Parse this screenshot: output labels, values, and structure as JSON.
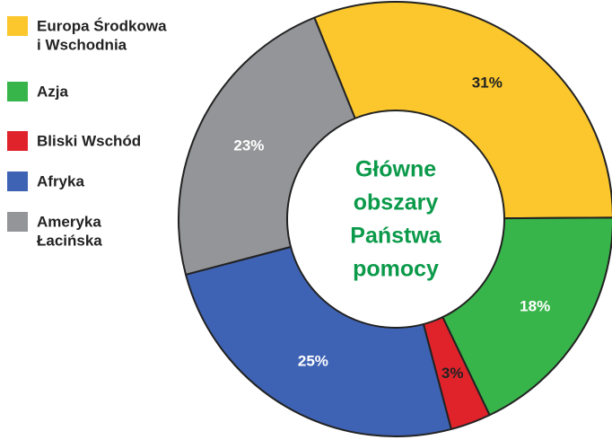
{
  "chart_data": {
    "type": "pie",
    "title_lines": [
      "Główne",
      "obszary",
      "Państwa",
      "pomocy"
    ],
    "title_color": "#0b9a4a",
    "slices": [
      {
        "label_lines": [
          "Europa Środkowa",
          "i Wschodnia"
        ],
        "value": 31,
        "value_label": "31%",
        "color": "#fbc72c",
        "label_color": "#222222"
      },
      {
        "label_lines": [
          "Azja"
        ],
        "value": 18,
        "value_label": "18%",
        "color": "#38b54a",
        "label_color": "#ffffff"
      },
      {
        "label_lines": [
          "Bliski Wschód"
        ],
        "value": 3,
        "value_label": "3%",
        "color": "#e0232b",
        "label_color": "#222222"
      },
      {
        "label_lines": [
          "Afryka"
        ],
        "value": 25,
        "value_label": "25%",
        "color": "#3f63b4",
        "label_color": "#ffffff"
      },
      {
        "label_lines": [
          "Ameryka",
          "Łacińska"
        ],
        "value": 23,
        "value_label": "23%",
        "color": "#939598",
        "label_color": "#ffffff"
      }
    ],
    "legend_position": "left",
    "donut": true
  }
}
